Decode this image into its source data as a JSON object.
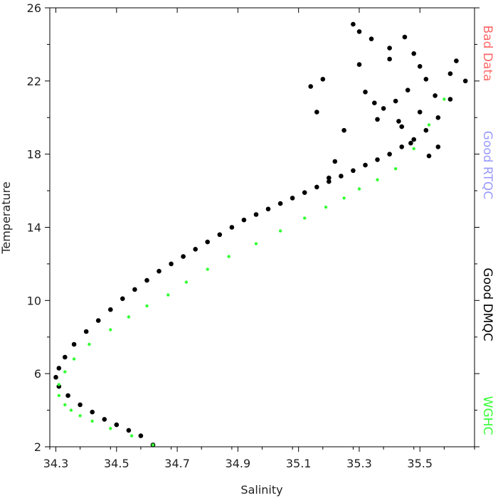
{
  "chart_data": {
    "type": "scatter",
    "xlabel": "Salinity",
    "ylabel": "Temperature",
    "xlim": [
      34.28,
      35.68
    ],
    "ylim": [
      2,
      26
    ],
    "x_ticks": [
      34.3,
      34.5,
      34.7,
      34.9,
      35.1,
      35.3,
      35.5
    ],
    "x_tick_labels": [
      "34.3",
      "34.5",
      "34.7",
      "34.9",
      "35.1",
      "35.3",
      "35.5"
    ],
    "y_ticks": [
      2,
      6,
      10,
      14,
      18,
      22,
      26
    ],
    "y_tick_labels": [
      "2",
      "6",
      "10",
      "14",
      "18",
      "22",
      "26"
    ],
    "grid": false,
    "legend_position": "right, vertical",
    "series": [
      {
        "name": "Bad Data",
        "color": "#ff6666",
        "x": [],
        "y": []
      },
      {
        "name": "Good RTQC",
        "color": "#9999ff",
        "x": [],
        "y": []
      },
      {
        "name": "Good DMQC",
        "color": "#000000",
        "x": [
          34.62,
          34.58,
          34.54,
          34.5,
          34.46,
          34.42,
          34.38,
          34.34,
          34.31,
          34.3,
          34.31,
          34.33,
          34.36,
          34.4,
          34.44,
          34.48,
          34.52,
          34.56,
          34.6,
          34.64,
          34.68,
          34.72,
          34.76,
          34.8,
          34.84,
          34.88,
          34.92,
          34.96,
          35.0,
          35.04,
          35.08,
          35.12,
          35.16,
          35.2,
          35.24,
          35.28,
          35.32,
          35.36,
          35.4,
          35.44,
          35.48,
          35.52,
          35.56,
          35.6,
          35.28,
          35.3,
          35.34,
          35.4,
          35.45,
          35.48,
          35.5,
          35.52,
          35.46,
          35.42,
          35.38,
          35.36,
          35.44,
          35.5,
          35.55,
          35.6,
          35.62,
          35.65,
          35.2,
          35.22,
          35.25,
          35.14,
          35.16,
          35.18,
          35.3,
          35.32,
          35.35,
          35.4,
          35.43,
          35.47,
          35.53,
          35.56
        ],
        "y": [
          2.1,
          2.6,
          2.9,
          3.2,
          3.5,
          3.9,
          4.3,
          4.8,
          5.3,
          5.8,
          6.3,
          6.9,
          7.6,
          8.3,
          8.9,
          9.5,
          10.1,
          10.6,
          11.1,
          11.6,
          12.0,
          12.4,
          12.8,
          13.2,
          13.6,
          14.0,
          14.4,
          14.7,
          15.0,
          15.3,
          15.6,
          15.9,
          16.2,
          16.5,
          16.8,
          17.1,
          17.4,
          17.7,
          18.0,
          18.4,
          18.8,
          19.3,
          20.0,
          21.0,
          25.1,
          24.7,
          24.3,
          23.8,
          24.4,
          23.5,
          22.8,
          22.1,
          21.5,
          20.9,
          20.5,
          19.9,
          19.5,
          20.3,
          21.2,
          22.4,
          23.1,
          22.0,
          16.7,
          17.6,
          19.3,
          21.7,
          20.3,
          22.1,
          22.9,
          21.4,
          20.8,
          23.2,
          19.8,
          18.6,
          17.9,
          18.4
        ]
      },
      {
        "name": "WGHC",
        "color": "#33ff33",
        "x": [
          34.62,
          34.55,
          34.48,
          34.42,
          34.38,
          34.35,
          34.33,
          34.31,
          34.31,
          34.33,
          34.36,
          34.41,
          34.48,
          34.54,
          34.6,
          34.67,
          34.73,
          34.8,
          34.87,
          34.96,
          35.04,
          35.12,
          35.19,
          35.25,
          35.3,
          35.36,
          35.42,
          35.48,
          35.53,
          35.58
        ],
        "y": [
          2.1,
          2.6,
          3.0,
          3.4,
          3.7,
          4.0,
          4.3,
          4.8,
          5.4,
          6.1,
          6.8,
          7.6,
          8.4,
          9.1,
          9.7,
          10.3,
          11.0,
          11.7,
          12.4,
          13.1,
          13.8,
          14.5,
          15.1,
          15.6,
          16.1,
          16.6,
          17.2,
          18.3,
          19.6,
          21.0
        ]
      }
    ]
  }
}
